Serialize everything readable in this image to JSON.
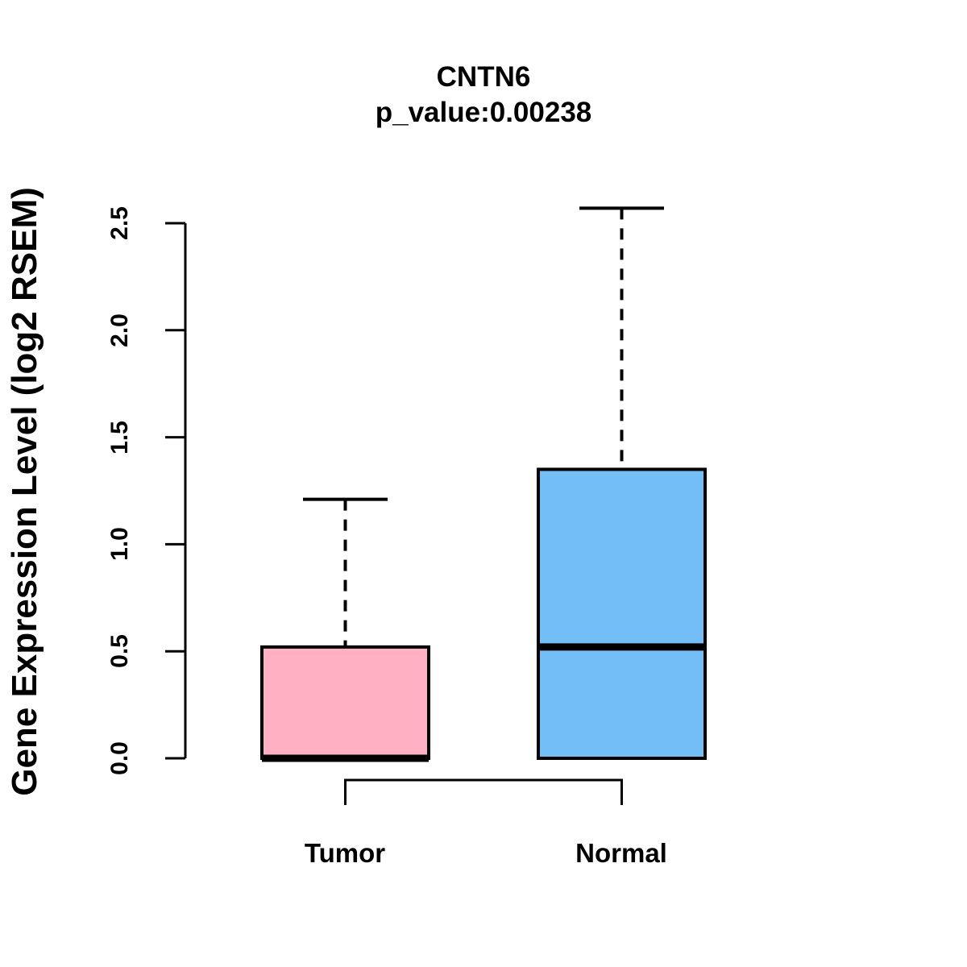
{
  "figure": {
    "background": "#FFFFFF",
    "text_color": "#000000"
  },
  "chart_data": {
    "type": "boxplot",
    "title": "CNTN6",
    "subtitle": "p_value:0.00238",
    "ylabel": "Gene Expression Level (log2 RSEM)",
    "xlabel": "",
    "ylim": [
      0.0,
      2.5
    ],
    "yticks": [
      0.0,
      0.5,
      1.0,
      1.5,
      2.0,
      2.5
    ],
    "ytick_labels": [
      "0.0",
      "0.5",
      "1.0",
      "1.5",
      "2.0",
      "2.5"
    ],
    "grid": false,
    "legend": "none",
    "categories": [
      "Tumor",
      "Normal"
    ],
    "groups": [
      {
        "name": "Tumor",
        "color": "#FFB0C3",
        "whisker_low": 0.0,
        "q1": 0.0,
        "median": 0.0,
        "q3": 0.52,
        "whisker_high": 1.21,
        "outliers": []
      },
      {
        "name": "Normal",
        "color": "#74BEF7",
        "whisker_low": 0.0,
        "q1": 0.0,
        "median": 0.52,
        "q3": 1.35,
        "whisker_high": 2.57,
        "outliers": []
      }
    ],
    "comparison_bracket": {
      "between": [
        "Tumor",
        "Normal"
      ]
    },
    "styles": {
      "box_border_color": "#000000",
      "whisker_style": "dashed"
    }
  }
}
